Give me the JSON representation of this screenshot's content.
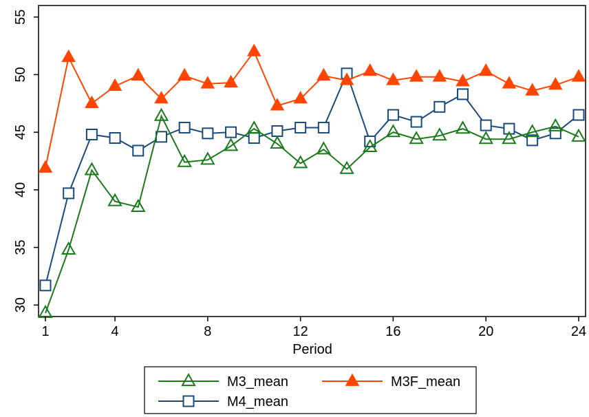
{
  "chart_data": {
    "type": "line",
    "title": "",
    "xlabel": "Period",
    "ylabel": "",
    "xlim": [
      1,
      24
    ],
    "ylim": [
      29,
      56
    ],
    "xticks": [
      1,
      4,
      8,
      12,
      16,
      20,
      24
    ],
    "yticks": [
      30,
      35,
      40,
      45,
      50,
      55
    ],
    "grid": false,
    "legend_position": "bottom",
    "x": [
      1,
      2,
      3,
      4,
      5,
      6,
      7,
      8,
      9,
      10,
      11,
      12,
      13,
      14,
      15,
      16,
      17,
      18,
      19,
      20,
      21,
      22,
      23,
      24
    ],
    "series": [
      {
        "name": "M3_mean",
        "color": "#1a7a1a",
        "marker": "triangle-hollow",
        "values": [
          29.3,
          34.8,
          41.7,
          39.0,
          38.5,
          46.4,
          42.4,
          42.6,
          43.8,
          45.3,
          44.0,
          42.3,
          43.5,
          41.8,
          43.7,
          45.0,
          44.4,
          44.7,
          45.3,
          44.4,
          44.4,
          45.0,
          45.5,
          44.6
        ]
      },
      {
        "name": "M3F_mean",
        "color": "#ff4500",
        "marker": "triangle-filled",
        "values": [
          41.9,
          51.5,
          47.5,
          49.0,
          49.9,
          47.9,
          49.9,
          49.2,
          49.3,
          52.0,
          47.3,
          47.9,
          49.9,
          49.5,
          50.3,
          49.5,
          49.8,
          49.8,
          49.4,
          50.3,
          49.2,
          48.6,
          49.1,
          49.8
        ]
      },
      {
        "name": "M4_mean",
        "color": "#1a4a7a",
        "marker": "square-hollow",
        "values": [
          31.7,
          39.7,
          44.8,
          44.5,
          43.4,
          44.6,
          45.4,
          44.9,
          45.0,
          44.5,
          45.1,
          45.4,
          45.4,
          50.1,
          44.2,
          46.5,
          45.9,
          47.2,
          48.3,
          45.6,
          45.3,
          44.3,
          44.9,
          46.5
        ]
      }
    ]
  }
}
